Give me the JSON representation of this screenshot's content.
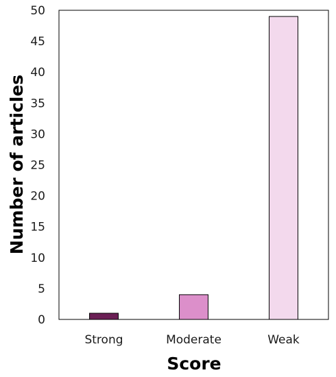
{
  "chart_data": {
    "type": "bar",
    "categories": [
      "Strong",
      "Moderate",
      "Weak"
    ],
    "values": [
      1,
      4,
      49
    ],
    "colors": [
      "#6b1f55",
      "#dc8fca",
      "#f3d9ed"
    ],
    "xlabel": "Score",
    "ylabel": "Number of articles",
    "ylim": [
      0,
      50
    ],
    "yticks": [
      0,
      5,
      10,
      15,
      20,
      25,
      30,
      35,
      40,
      45,
      50
    ],
    "grid": false,
    "legend": "none"
  }
}
